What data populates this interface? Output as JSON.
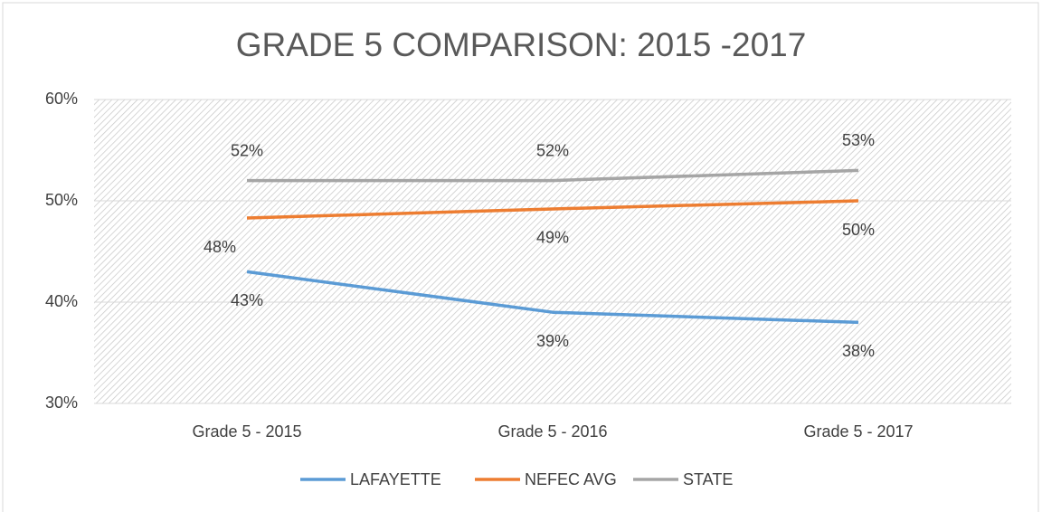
{
  "chart_data": {
    "type": "line",
    "title": "GRADE 5 COMPARISON: 2015 -2017",
    "categories": [
      "Grade 5 - 2015",
      "Grade 5 - 2016",
      "Grade 5 - 2017"
    ],
    "series": [
      {
        "name": "LAFAYETTE",
        "color": "#5b9bd5",
        "values": [
          43,
          39,
          38
        ],
        "value_labels": [
          "43%",
          "39%",
          "38%"
        ]
      },
      {
        "name": "NEFEC AVG",
        "color": "#ed7d31",
        "values": [
          48.3,
          49.2,
          50
        ],
        "value_labels": [
          "48%",
          "49%",
          "50%"
        ]
      },
      {
        "name": "STATE",
        "color": "#a5a5a5",
        "values": [
          52,
          52,
          53
        ],
        "value_labels": [
          "52%",
          "52%",
          "53%"
        ]
      }
    ],
    "ylim": [
      30,
      60
    ],
    "yticks": [
      {
        "value": 30,
        "label": "30%"
      },
      {
        "value": 40,
        "label": "40%"
      },
      {
        "value": 50,
        "label": "50%"
      },
      {
        "value": 60,
        "label": "60%"
      }
    ],
    "grid": true,
    "legend": "bottom"
  }
}
